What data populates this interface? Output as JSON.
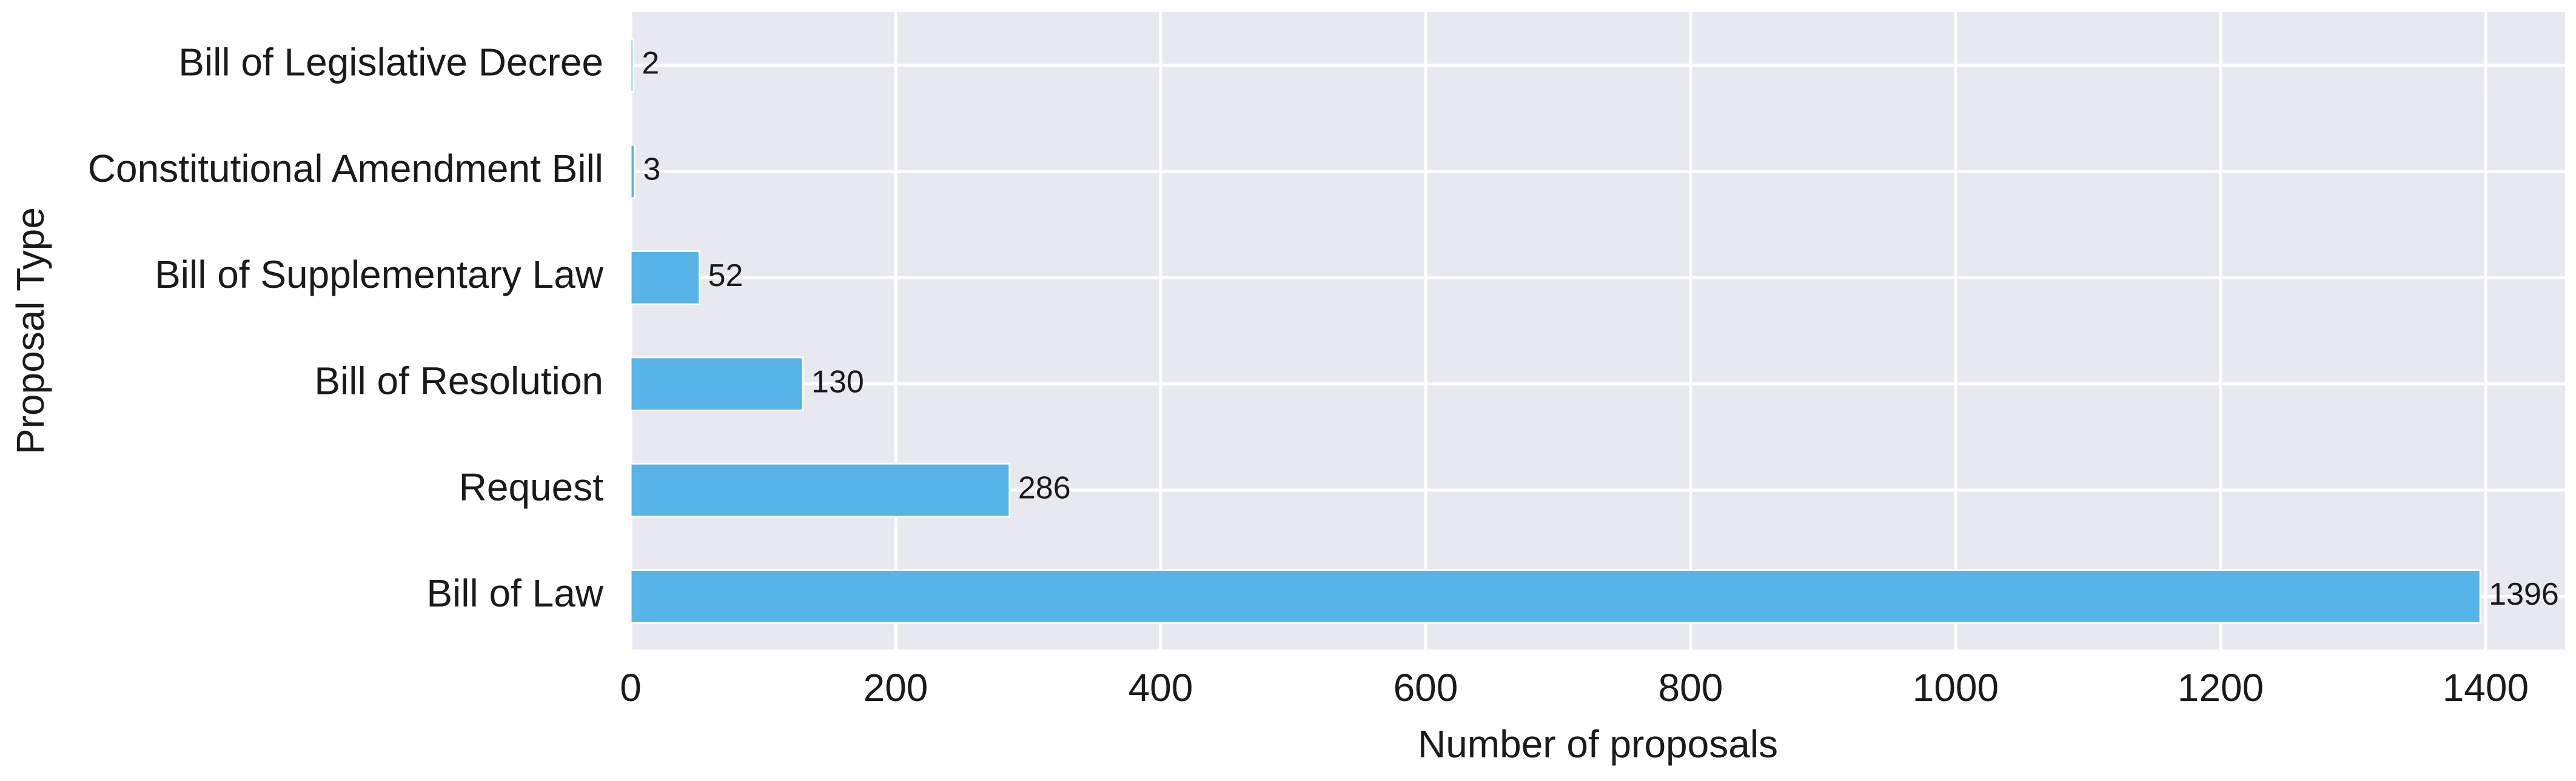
{
  "colors": {
    "background": "#ffffff",
    "plot_background": "#e8e8f0",
    "grid": "#ffffff",
    "bar": "#56b4e9",
    "text": "#1a1a1a"
  },
  "chart_data": {
    "type": "bar",
    "orientation": "horizontal",
    "title": "",
    "xlabel": "Number of proposals",
    "ylabel": "Proposal Type",
    "categories": [
      "Bill of Law",
      "Request",
      "Bill of Resolution",
      "Bill of Supplementary Law",
      "Constitutional Amendment Bill",
      "Bill of Legislative Decree"
    ],
    "values": [
      1396,
      286,
      130,
      52,
      3,
      2
    ],
    "data_labels": [
      "1396",
      "286",
      "130",
      "52",
      "3",
      "2"
    ],
    "xlim": [
      0,
      1460
    ],
    "xticks": [
      0,
      200,
      400,
      600,
      800,
      1000,
      1200,
      1400
    ],
    "xtick_labels": [
      "0",
      "200",
      "400",
      "600",
      "800",
      "1000",
      "1200",
      "1400"
    ],
    "grid": true,
    "legend": "none"
  }
}
